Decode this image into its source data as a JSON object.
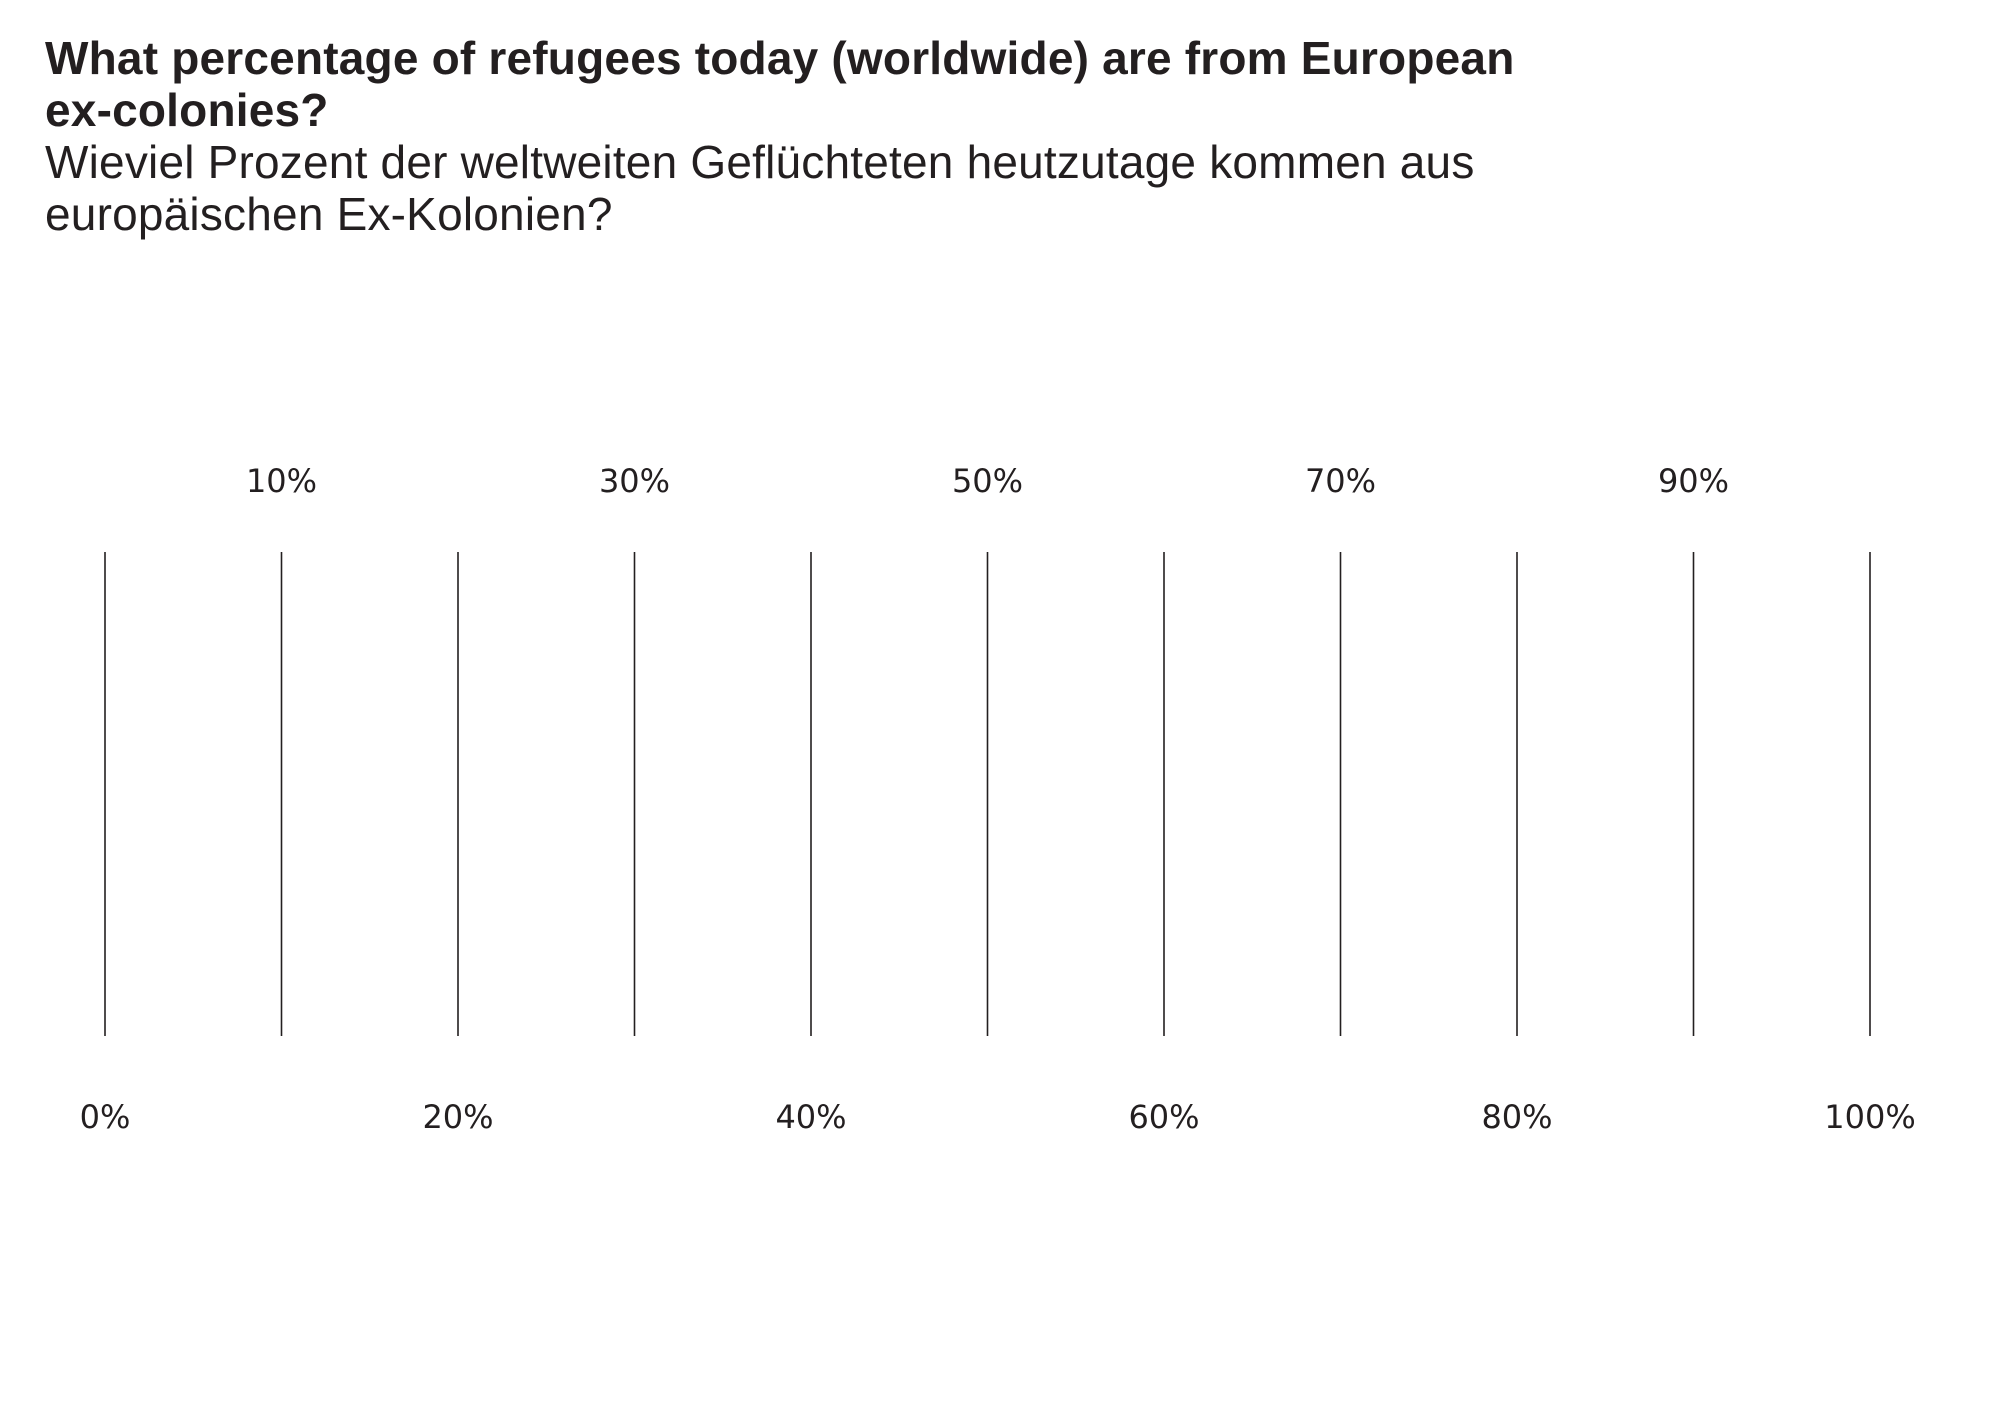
{
  "question": {
    "english": "What percentage of refugees today (worldwide) are from European ex-colonies?",
    "german": "Wieviel Prozent der weltweiten Geflüchteten heutzutage kommen aus europäischen Ex-Kolonien?"
  },
  "scale": {
    "ticks": [
      0,
      10,
      20,
      30,
      40,
      50,
      60,
      70,
      80,
      90,
      100
    ],
    "labels_top": [
      "10%",
      "30%",
      "50%",
      "70%",
      "90%"
    ],
    "labels_bottom": [
      "0%",
      "20%",
      "40%",
      "60%",
      "80%",
      "100%"
    ],
    "line_color": "#231f20",
    "text_color": "#231f20"
  }
}
